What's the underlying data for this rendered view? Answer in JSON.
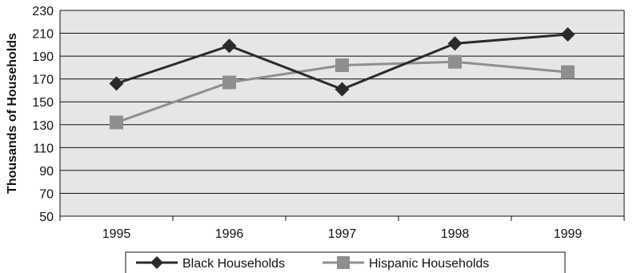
{
  "chart_data": {
    "type": "line",
    "title": "",
    "xlabel": "",
    "ylabel": "Thousands of Households",
    "categories": [
      "1995",
      "1996",
      "1997",
      "1998",
      "1999"
    ],
    "ylim": [
      50,
      230
    ],
    "yticks": [
      50,
      70,
      90,
      110,
      130,
      150,
      170,
      190,
      210,
      230
    ],
    "grid": true,
    "legend_position": "bottom",
    "series": [
      {
        "name": "Black Households",
        "values": [
          166,
          199,
          161,
          201,
          209
        ],
        "marker": "diamond",
        "color": "#2b2b2b"
      },
      {
        "name": "Hispanic Households",
        "values": [
          132,
          167,
          182,
          185,
          176
        ],
        "marker": "square",
        "color": "#8f8f8f"
      }
    ]
  }
}
